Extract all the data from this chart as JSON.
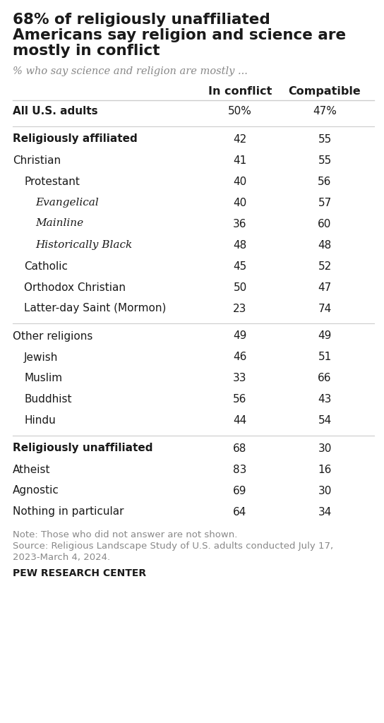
{
  "title_lines": [
    "68% of religiously unaffiliated",
    "Americans say religion and science are",
    "mostly in conflict"
  ],
  "subtitle": "% who say science and religion are mostly ...",
  "col1_header": "In conflict",
  "col2_header": "Compatible",
  "rows": [
    {
      "label": "All U.S. adults",
      "conflict": "50%",
      "compatible": "47%",
      "style": "bold",
      "indent": 0,
      "separator_below": true
    },
    {
      "label": "Religiously affiliated",
      "conflict": "42",
      "compatible": "55",
      "style": "bold",
      "indent": 0,
      "separator_below": false
    },
    {
      "label": "Christian",
      "conflict": "41",
      "compatible": "55",
      "style": "normal",
      "indent": 0,
      "separator_below": false
    },
    {
      "label": "Protestant",
      "conflict": "40",
      "compatible": "56",
      "style": "normal",
      "indent": 1,
      "separator_below": false
    },
    {
      "label": "Evangelical",
      "conflict": "40",
      "compatible": "57",
      "style": "italic",
      "indent": 2,
      "separator_below": false
    },
    {
      "label": "Mainline",
      "conflict": "36",
      "compatible": "60",
      "style": "italic",
      "indent": 2,
      "separator_below": false
    },
    {
      "label": "Historically Black",
      "conflict": "48",
      "compatible": "48",
      "style": "italic",
      "indent": 2,
      "separator_below": false
    },
    {
      "label": "Catholic",
      "conflict": "45",
      "compatible": "52",
      "style": "normal",
      "indent": 1,
      "separator_below": false
    },
    {
      "label": "Orthodox Christian",
      "conflict": "50",
      "compatible": "47",
      "style": "normal",
      "indent": 1,
      "separator_below": false
    },
    {
      "label": "Latter-day Saint (Mormon)",
      "conflict": "23",
      "compatible": "74",
      "style": "normal",
      "indent": 1,
      "separator_below": true
    },
    {
      "label": "Other religions",
      "conflict": "49",
      "compatible": "49",
      "style": "normal",
      "indent": 0,
      "separator_below": false
    },
    {
      "label": "Jewish",
      "conflict": "46",
      "compatible": "51",
      "style": "normal",
      "indent": 1,
      "separator_below": false
    },
    {
      "label": "Muslim",
      "conflict": "33",
      "compatible": "66",
      "style": "normal",
      "indent": 1,
      "separator_below": false
    },
    {
      "label": "Buddhist",
      "conflict": "56",
      "compatible": "43",
      "style": "normal",
      "indent": 1,
      "separator_below": false
    },
    {
      "label": "Hindu",
      "conflict": "44",
      "compatible": "54",
      "style": "normal",
      "indent": 1,
      "separator_below": true
    },
    {
      "label": "Religiously unaffiliated",
      "conflict": "68",
      "compatible": "30",
      "style": "bold",
      "indent": 0,
      "separator_below": false
    },
    {
      "label": "Atheist",
      "conflict": "83",
      "compatible": "16",
      "style": "normal",
      "indent": 0,
      "separator_below": false
    },
    {
      "label": "Agnostic",
      "conflict": "69",
      "compatible": "30",
      "style": "normal",
      "indent": 0,
      "separator_below": false
    },
    {
      "label": "Nothing in particular",
      "conflict": "64",
      "compatible": "34",
      "style": "normal",
      "indent": 0,
      "separator_below": false
    }
  ],
  "note_lines": [
    "Note: Those who did not answer are not shown.",
    "Source: Religious Landscape Study of U.S. adults conducted July 17,",
    "2023-March 4, 2024."
  ],
  "footer": "PEW RESEARCH CENTER",
  "bg_color": "#ffffff",
  "text_color": "#1a1a1a",
  "subtitle_color": "#888888",
  "note_color": "#888888",
  "separator_color": "#cccccc",
  "title_fontsize": 15.5,
  "subtitle_fontsize": 10.5,
  "header_fontsize": 11.5,
  "row_fontsize": 11,
  "note_fontsize": 9.5,
  "footer_fontsize": 10
}
